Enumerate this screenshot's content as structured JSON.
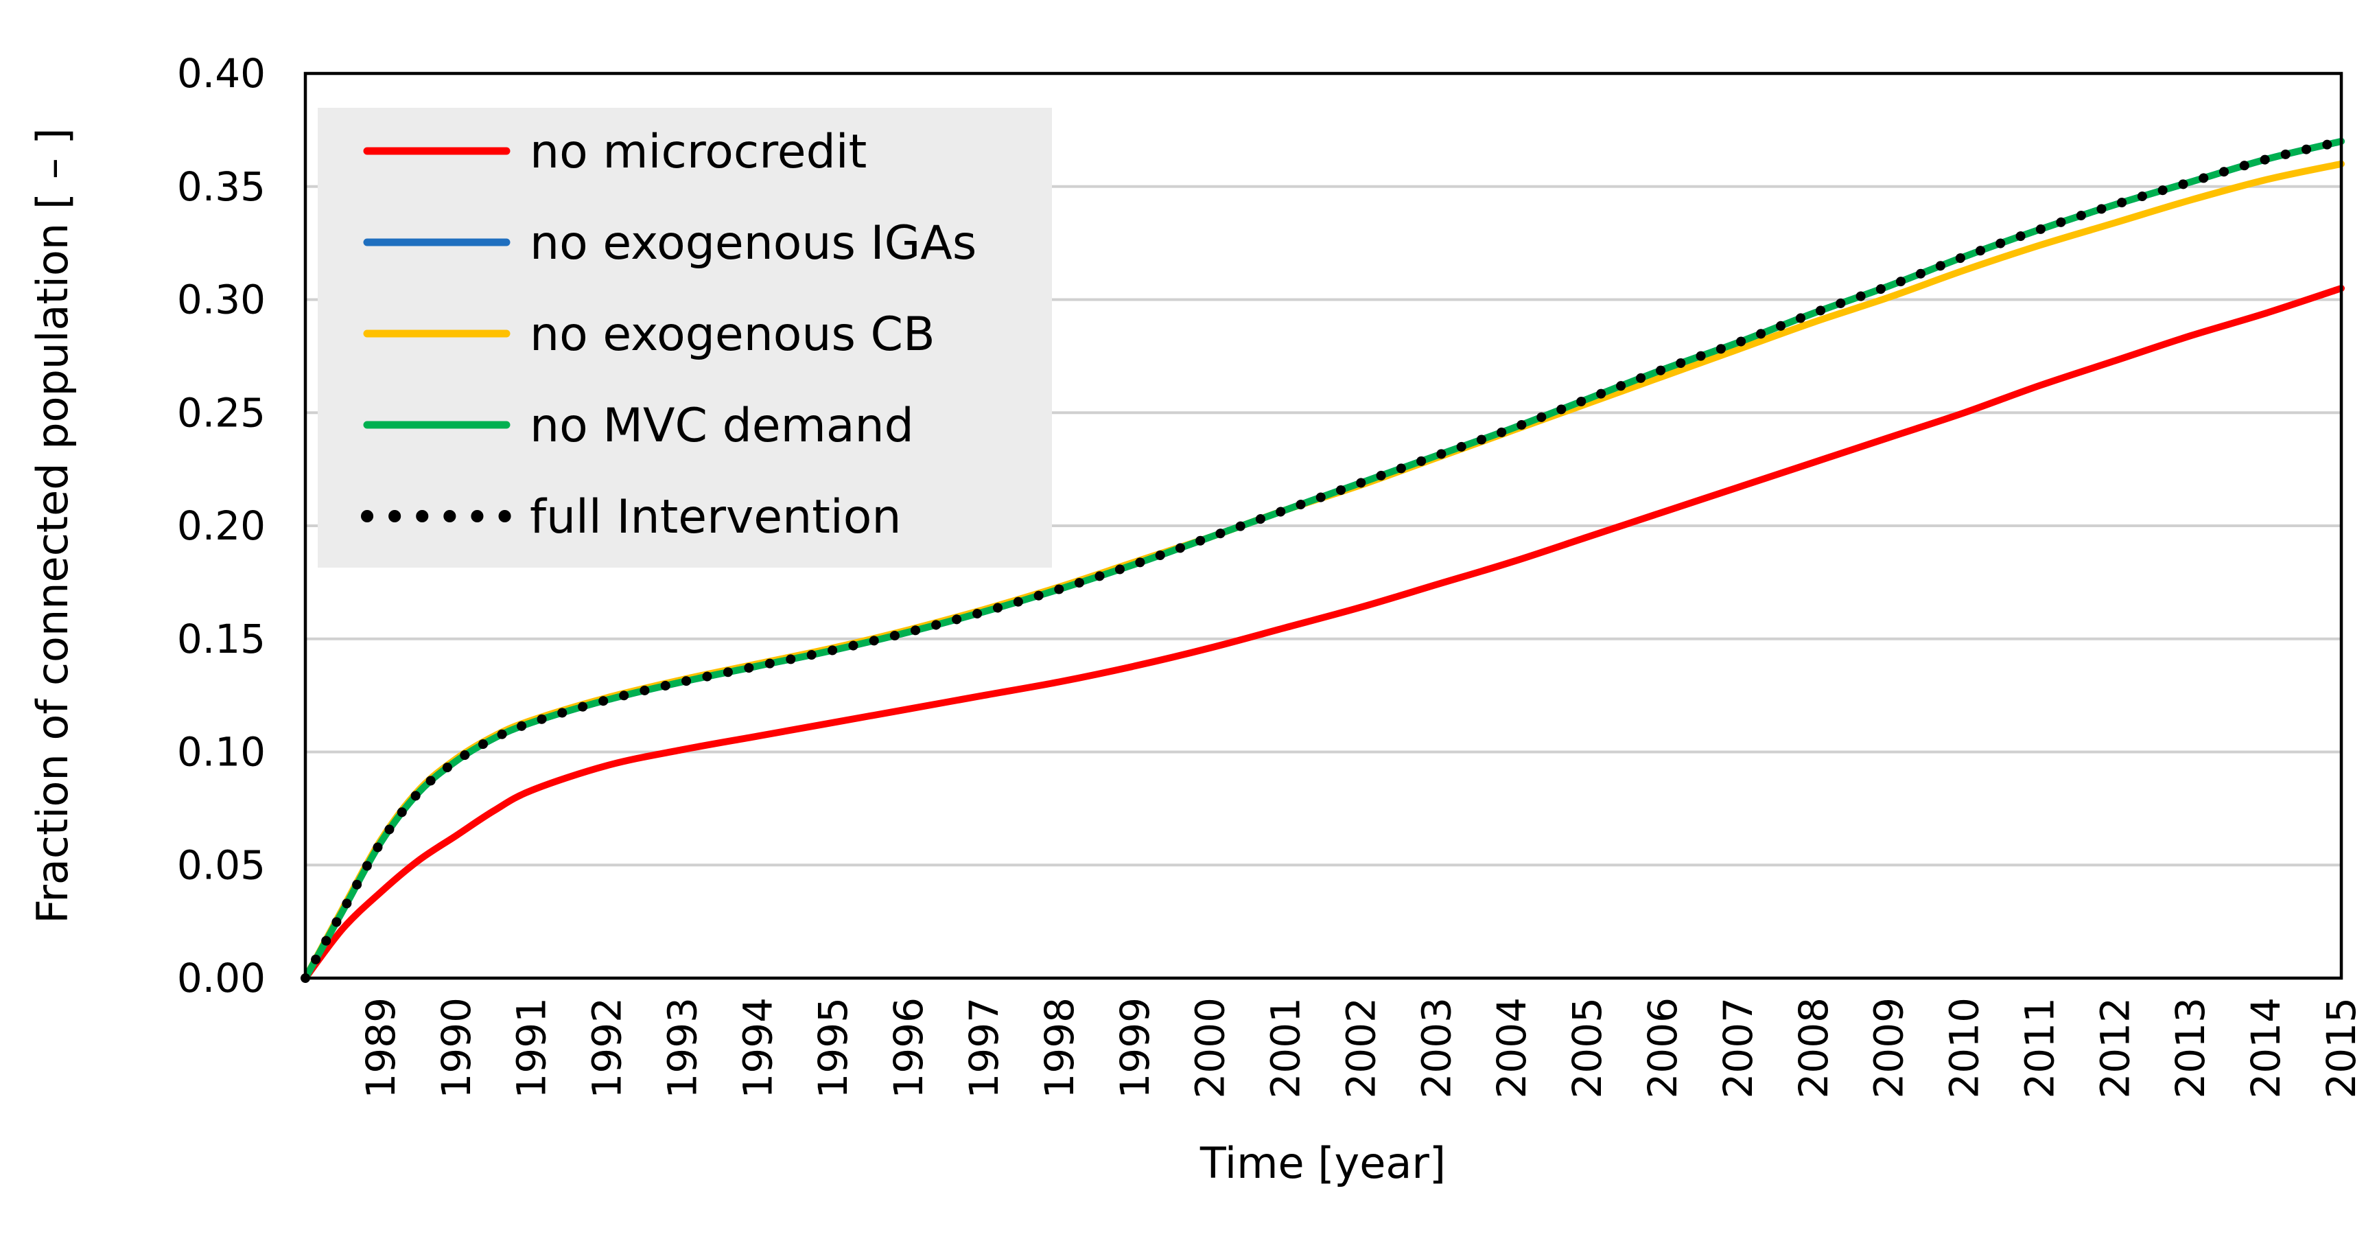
{
  "chart_data": {
    "type": "line",
    "title": "",
    "xlabel": "Time [year]",
    "ylabel": "Fraction of connected population [ – ]",
    "xlim": [
      1988,
      2015
    ],
    "ylim": [
      0.0,
      0.4
    ],
    "grid": true,
    "legend_position": "top-left",
    "x_ticks": [
      1989,
      1990,
      1991,
      1992,
      1993,
      1994,
      1995,
      1996,
      1997,
      1998,
      1999,
      2000,
      2001,
      2002,
      2003,
      2004,
      2005,
      2006,
      2007,
      2008,
      2009,
      2010,
      2011,
      2012,
      2013,
      2014,
      2015
    ],
    "y_ticks": [
      "0.00",
      "0.05",
      "0.10",
      "0.15",
      "0.20",
      "0.25",
      "0.30",
      "0.35",
      "0.40"
    ],
    "x": [
      1988,
      1988.5,
      1989,
      1989.5,
      1990,
      1990.5,
      1991,
      1992,
      1993,
      1994,
      1995,
      1996,
      1997,
      1998,
      1999,
      2000,
      2001,
      2002,
      2003,
      2004,
      2005,
      2006,
      2007,
      2008,
      2009,
      2010,
      2011,
      2012,
      2013,
      2014,
      2015
    ],
    "series": [
      {
        "name": "no microcredit",
        "color": "#ff0000",
        "style": "solid",
        "values": [
          0.0,
          0.022,
          0.038,
          0.052,
          0.063,
          0.074,
          0.083,
          0.094,
          0.101,
          0.107,
          0.113,
          0.119,
          0.125,
          0.131,
          0.138,
          0.146,
          0.155,
          0.164,
          0.174,
          0.184,
          0.195,
          0.206,
          0.217,
          0.228,
          0.239,
          0.25,
          0.262,
          0.273,
          0.284,
          0.294,
          0.305
        ]
      },
      {
        "name": "no exogenous IGAs",
        "color": "#1f6fbf",
        "style": "solid",
        "values": [
          0.0,
          0.03,
          0.06,
          0.082,
          0.096,
          0.106,
          0.113,
          0.123,
          0.131,
          0.138,
          0.145,
          0.153,
          0.162,
          0.172,
          0.183,
          0.195,
          0.207,
          0.219,
          0.231,
          0.243,
          0.256,
          0.269,
          0.281,
          0.294,
          0.306,
          0.319,
          0.331,
          0.342,
          0.352,
          0.362,
          0.37
        ]
      },
      {
        "name": "no exogenous CB",
        "color": "#ffc000",
        "style": "solid",
        "values": [
          0.0,
          0.031,
          0.061,
          0.083,
          0.097,
          0.107,
          0.114,
          0.124,
          0.132,
          0.139,
          0.146,
          0.154,
          0.163,
          0.173,
          0.184,
          0.195,
          0.207,
          0.218,
          0.23,
          0.242,
          0.254,
          0.266,
          0.278,
          0.29,
          0.301,
          0.313,
          0.324,
          0.334,
          0.344,
          0.353,
          0.36
        ]
      },
      {
        "name": "no MVC demand",
        "color": "#00b050",
        "style": "solid",
        "values": [
          0.0,
          0.03,
          0.06,
          0.082,
          0.096,
          0.106,
          0.113,
          0.123,
          0.131,
          0.138,
          0.145,
          0.153,
          0.162,
          0.172,
          0.183,
          0.195,
          0.207,
          0.219,
          0.231,
          0.243,
          0.256,
          0.269,
          0.281,
          0.294,
          0.306,
          0.319,
          0.331,
          0.342,
          0.352,
          0.362,
          0.37
        ]
      },
      {
        "name": "full Intervention",
        "color": "#000000",
        "style": "dotted",
        "values": [
          0.0,
          0.03,
          0.06,
          0.082,
          0.096,
          0.106,
          0.113,
          0.123,
          0.131,
          0.138,
          0.145,
          0.153,
          0.162,
          0.172,
          0.183,
          0.195,
          0.207,
          0.219,
          0.231,
          0.243,
          0.256,
          0.269,
          0.281,
          0.294,
          0.306,
          0.319,
          0.331,
          0.342,
          0.352,
          0.362,
          0.37
        ]
      }
    ]
  }
}
